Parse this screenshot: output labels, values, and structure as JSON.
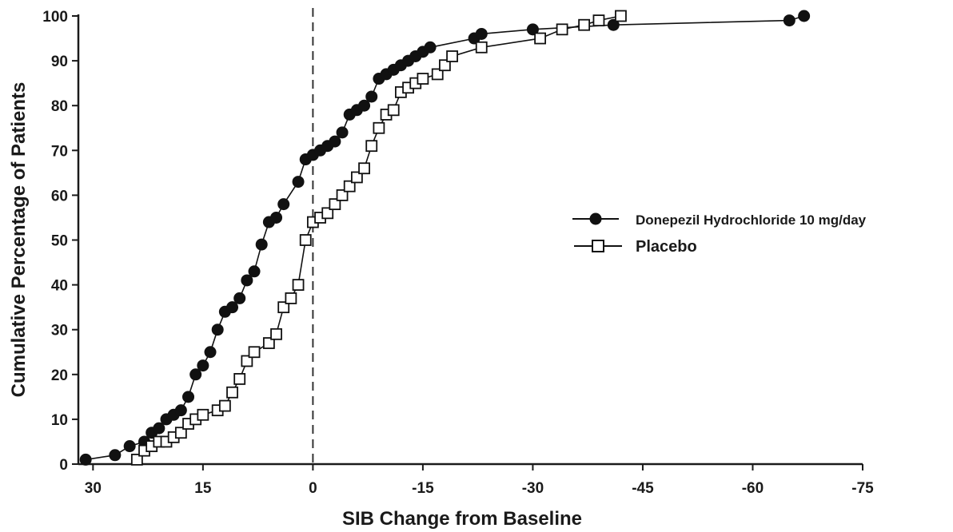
{
  "chart_data": {
    "type": "line",
    "title": "",
    "xlabel": "SIB Change from Baseline",
    "ylabel": "Cumulative Percentage of Patients",
    "xlim": [
      32,
      -75
    ],
    "ylim": [
      0,
      100
    ],
    "x_reversed": true,
    "x_ticks": [
      30,
      15,
      0,
      -15,
      -30,
      -45,
      -60,
      -75
    ],
    "x_tick_labels": [
      "30",
      "15",
      "0",
      "-15",
      "-30",
      "-45",
      "-60",
      "-75"
    ],
    "y_ticks": [
      0,
      10,
      20,
      30,
      40,
      50,
      60,
      70,
      80,
      90,
      100
    ],
    "y_tick_labels": [
      "0",
      "10",
      "20",
      "30",
      "40",
      "50",
      "60",
      "70",
      "80",
      "90",
      "100"
    ],
    "reference_line": {
      "x": 0,
      "style": "dashed"
    },
    "grid": false,
    "legend_position": "right",
    "series": [
      {
        "name": "Donepezil Hydrochloride 10 mg/day",
        "marker": "filled-circle",
        "color": "#111111",
        "points": [
          [
            31,
            1
          ],
          [
            27,
            2
          ],
          [
            25,
            4
          ],
          [
            23,
            5
          ],
          [
            22,
            7
          ],
          [
            21,
            8
          ],
          [
            20,
            10
          ],
          [
            19,
            11
          ],
          [
            18,
            12
          ],
          [
            17,
            15
          ],
          [
            16,
            20
          ],
          [
            15,
            22
          ],
          [
            14,
            25
          ],
          [
            13,
            30
          ],
          [
            12,
            34
          ],
          [
            11,
            35
          ],
          [
            10,
            37
          ],
          [
            9,
            41
          ],
          [
            8,
            43
          ],
          [
            7,
            49
          ],
          [
            6,
            54
          ],
          [
            5,
            55
          ],
          [
            4,
            58
          ],
          [
            2,
            63
          ],
          [
            1,
            68
          ],
          [
            0,
            69
          ],
          [
            -1,
            70
          ],
          [
            -2,
            71
          ],
          [
            -3,
            72
          ],
          [
            -4,
            74
          ],
          [
            -5,
            78
          ],
          [
            -6,
            79
          ],
          [
            -7,
            80
          ],
          [
            -8,
            82
          ],
          [
            -9,
            86
          ],
          [
            -10,
            87
          ],
          [
            -11,
            88
          ],
          [
            -12,
            89
          ],
          [
            -13,
            90
          ],
          [
            -14,
            91
          ],
          [
            -15,
            92
          ],
          [
            -16,
            93
          ],
          [
            -22,
            95
          ],
          [
            -23,
            96
          ],
          [
            -30,
            97
          ],
          [
            -41,
            98
          ],
          [
            -65,
            99
          ],
          [
            -67,
            100
          ]
        ]
      },
      {
        "name": "Placebo",
        "marker": "open-square",
        "color": "#111111",
        "points": [
          [
            24,
            1
          ],
          [
            23,
            3
          ],
          [
            22,
            4
          ],
          [
            21,
            5
          ],
          [
            20,
            5
          ],
          [
            19,
            6
          ],
          [
            18,
            7
          ],
          [
            17,
            9
          ],
          [
            16,
            10
          ],
          [
            15,
            11
          ],
          [
            13,
            12
          ],
          [
            12,
            13
          ],
          [
            11,
            16
          ],
          [
            10,
            19
          ],
          [
            9,
            23
          ],
          [
            8,
            25
          ],
          [
            6,
            27
          ],
          [
            5,
            29
          ],
          [
            4,
            35
          ],
          [
            3,
            37
          ],
          [
            2,
            40
          ],
          [
            1,
            50
          ],
          [
            0,
            54
          ],
          [
            -1,
            55
          ],
          [
            -2,
            56
          ],
          [
            -3,
            58
          ],
          [
            -4,
            60
          ],
          [
            -5,
            62
          ],
          [
            -6,
            64
          ],
          [
            -7,
            66
          ],
          [
            -8,
            71
          ],
          [
            -9,
            75
          ],
          [
            -10,
            78
          ],
          [
            -11,
            79
          ],
          [
            -12,
            83
          ],
          [
            -13,
            84
          ],
          [
            -14,
            85
          ],
          [
            -15,
            86
          ],
          [
            -17,
            87
          ],
          [
            -18,
            89
          ],
          [
            -19,
            91
          ],
          [
            -23,
            93
          ],
          [
            -31,
            95
          ],
          [
            -34,
            97
          ],
          [
            -37,
            98
          ],
          [
            -39,
            99
          ],
          [
            -42,
            100
          ]
        ]
      }
    ]
  }
}
